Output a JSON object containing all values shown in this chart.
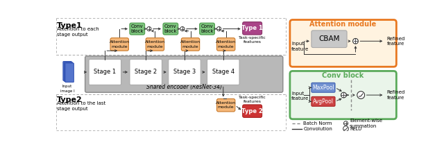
{
  "fig_width": 6.4,
  "fig_height": 2.12,
  "dpi": 100,
  "bg_color": "#ffffff",
  "type1_label": "Type1",
  "type1_sub": "Attention to each\nstage output",
  "type2_label": "Type2",
  "type2_sub": "Attention to the last\nstage output",
  "shared_encoder_label": "Shared encoder (ResNet-34)",
  "stage_labels": [
    "Stage 1",
    "Stage 2",
    "Stage 3",
    "Stage 4"
  ],
  "conv_block_label": "Conv\nblock",
  "attention_module_label": "Attention\nmodule",
  "task_specific_label1": "Task-specific\nfeatures",
  "task_specific_label2": "Task-specific\nfeatures",
  "type1_box_label": "Type 1",
  "type2_box_label": "Type 2",
  "cbam_label": "CBAM",
  "attention_module_title": "Attention module",
  "conv_block_title": "Conv block",
  "maxpool_label": "MaxPool",
  "avgpool_label": "AvgPool",
  "legend_batch_norm": "Batch Norm",
  "legend_element_wise": "Element-wise\nsummation",
  "legend_convolution": "Convolution",
  "legend_relu": "ReLU",
  "color_conv_block": "#7dc47d",
  "color_conv_block_ec": "#4a9a4a",
  "color_attention_module": "#f5b87a",
  "color_attention_module_ec": "#c87828",
  "color_stage_bg": "#b8b8b8",
  "color_stage_box": "#ffffff",
  "color_type1_box": "#aa4488",
  "color_type1_box_ec": "#883366",
  "color_type2_box": "#cc3333",
  "color_type2_box_ec": "#aa2222",
  "color_attention_outline_orange": "#e87820",
  "color_attn_bg": "#fff3e0",
  "color_conv_block_outline_green": "#5aaa5a",
  "color_conv_blk_bg": "#eaf5ea",
  "color_cbam_box": "#c0c0c0",
  "color_maxpool": "#7090d0",
  "color_maxpool_ec": "#4060b0",
  "color_avgpool": "#cc4444",
  "color_avgpool_ec": "#aa2222",
  "color_input_image": "#5575cc",
  "color_input_image_ec": "#2244aa"
}
